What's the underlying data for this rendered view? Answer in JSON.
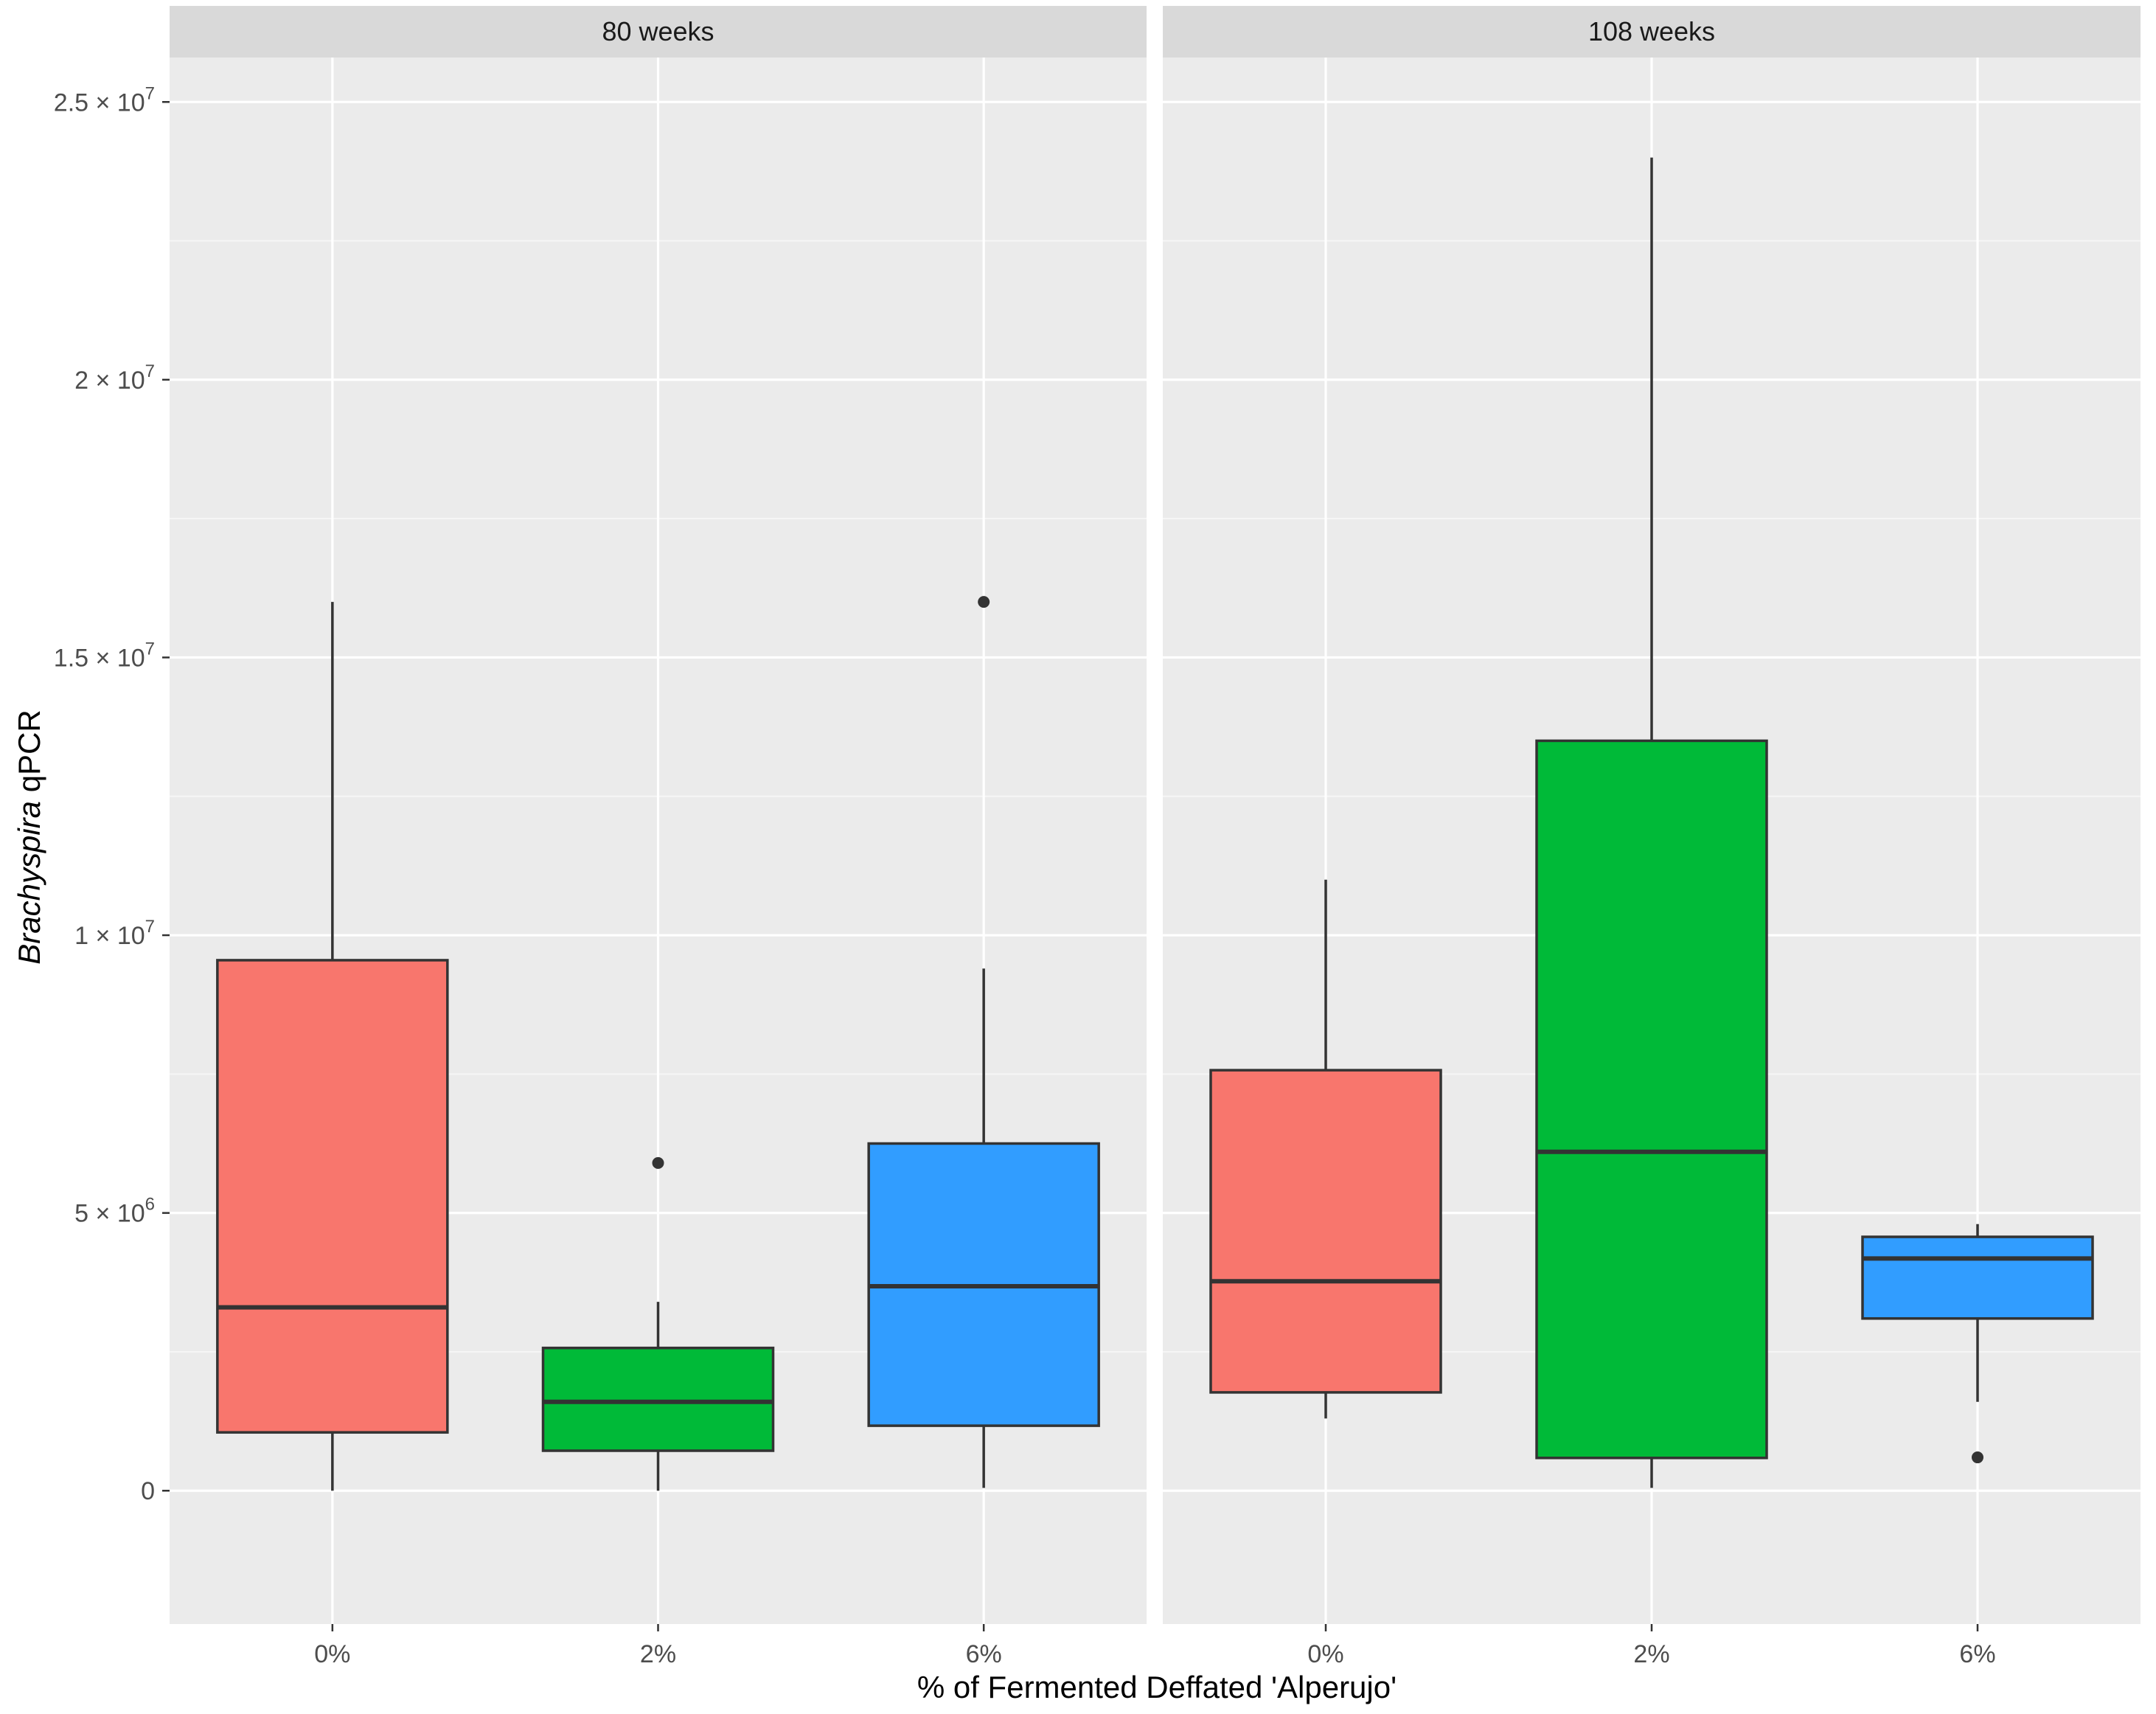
{
  "chart_data": {
    "type": "boxplot",
    "xlabel": "% of Fermented Deffated 'Alperujo'",
    "ylabel_italic": "Brachyspira",
    "ylabel_rest": " qPCR",
    "ylim": [
      -2400000,
      25800000
    ],
    "y_ticks": [
      {
        "value": 0,
        "mantissa": "0",
        "exponent": ""
      },
      {
        "value": 5000000,
        "mantissa": "5 × 10",
        "exponent": "6"
      },
      {
        "value": 10000000,
        "mantissa": "1 × 10",
        "exponent": "7"
      },
      {
        "value": 15000000,
        "mantissa": "1.5 × 10",
        "exponent": "7"
      },
      {
        "value": 20000000,
        "mantissa": "2 × 10",
        "exponent": "7"
      },
      {
        "value": 25000000,
        "mantissa": "2.5 × 10",
        "exponent": "7"
      }
    ],
    "y_minor_ticks": [
      2500000,
      7500000,
      12500000,
      17500000,
      22500000
    ],
    "categories": [
      "0%",
      "2%",
      "6%"
    ],
    "colors": {
      "0%": "#F8766D",
      "2%": "#00BA38",
      "6%": "#319DFF"
    },
    "panels": [
      {
        "label": "80 weeks",
        "boxes": [
          {
            "category": "0%",
            "whisker_low": 0,
            "q1": 1050000,
            "median": 3300000,
            "q3": 9550000,
            "whisker_high": 16000000,
            "outliers": []
          },
          {
            "category": "2%",
            "whisker_low": 0,
            "q1": 720000,
            "median": 1600000,
            "q3": 2570000,
            "whisker_high": 3400000,
            "outliers": [
              5900000
            ]
          },
          {
            "category": "6%",
            "whisker_low": 50000,
            "q1": 1170000,
            "median": 3680000,
            "q3": 6250000,
            "whisker_high": 9400000,
            "outliers": [
              16000000
            ]
          }
        ]
      },
      {
        "label": "108 weeks",
        "boxes": [
          {
            "category": "0%",
            "whisker_low": 1300000,
            "q1": 1770000,
            "median": 3770000,
            "q3": 7570000,
            "whisker_high": 11000000,
            "outliers": []
          },
          {
            "category": "2%",
            "whisker_low": 50000,
            "q1": 590000,
            "median": 6100000,
            "q3": 13500000,
            "whisker_high": 24000000,
            "outliers": []
          },
          {
            "category": "6%",
            "whisker_low": 1600000,
            "q1": 3100000,
            "median": 4180000,
            "q3": 4570000,
            "whisker_high": 4800000,
            "outliers": [
              600000
            ]
          }
        ]
      }
    ]
  }
}
